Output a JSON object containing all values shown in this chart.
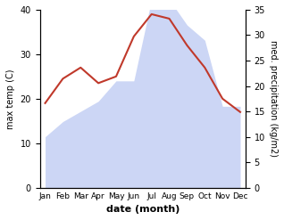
{
  "months": [
    "Jan",
    "Feb",
    "Mar",
    "Apr",
    "May",
    "Jun",
    "Jul",
    "Aug",
    "Sep",
    "Oct",
    "Nov",
    "Dec"
  ],
  "temperature": [
    19,
    24.5,
    27,
    23.5,
    25,
    34,
    39,
    38,
    32,
    27,
    20,
    17
  ],
  "precipitation": [
    10,
    13,
    15,
    17,
    21,
    21,
    37,
    37,
    32,
    29,
    16,
    16
  ],
  "temp_color": "#c0392b",
  "precip_color_fill": "#ccd6f5",
  "temp_ylim": [
    0,
    40
  ],
  "precip_ylim": [
    0,
    35
  ],
  "temp_yticks": [
    0,
    10,
    20,
    30,
    40
  ],
  "precip_yticks": [
    0,
    5,
    10,
    15,
    20,
    25,
    30,
    35
  ],
  "xlabel": "date (month)",
  "ylabel_left": "max temp (C)",
  "ylabel_right": "med. precipitation (kg/m2)",
  "bg_color": "#ffffff"
}
